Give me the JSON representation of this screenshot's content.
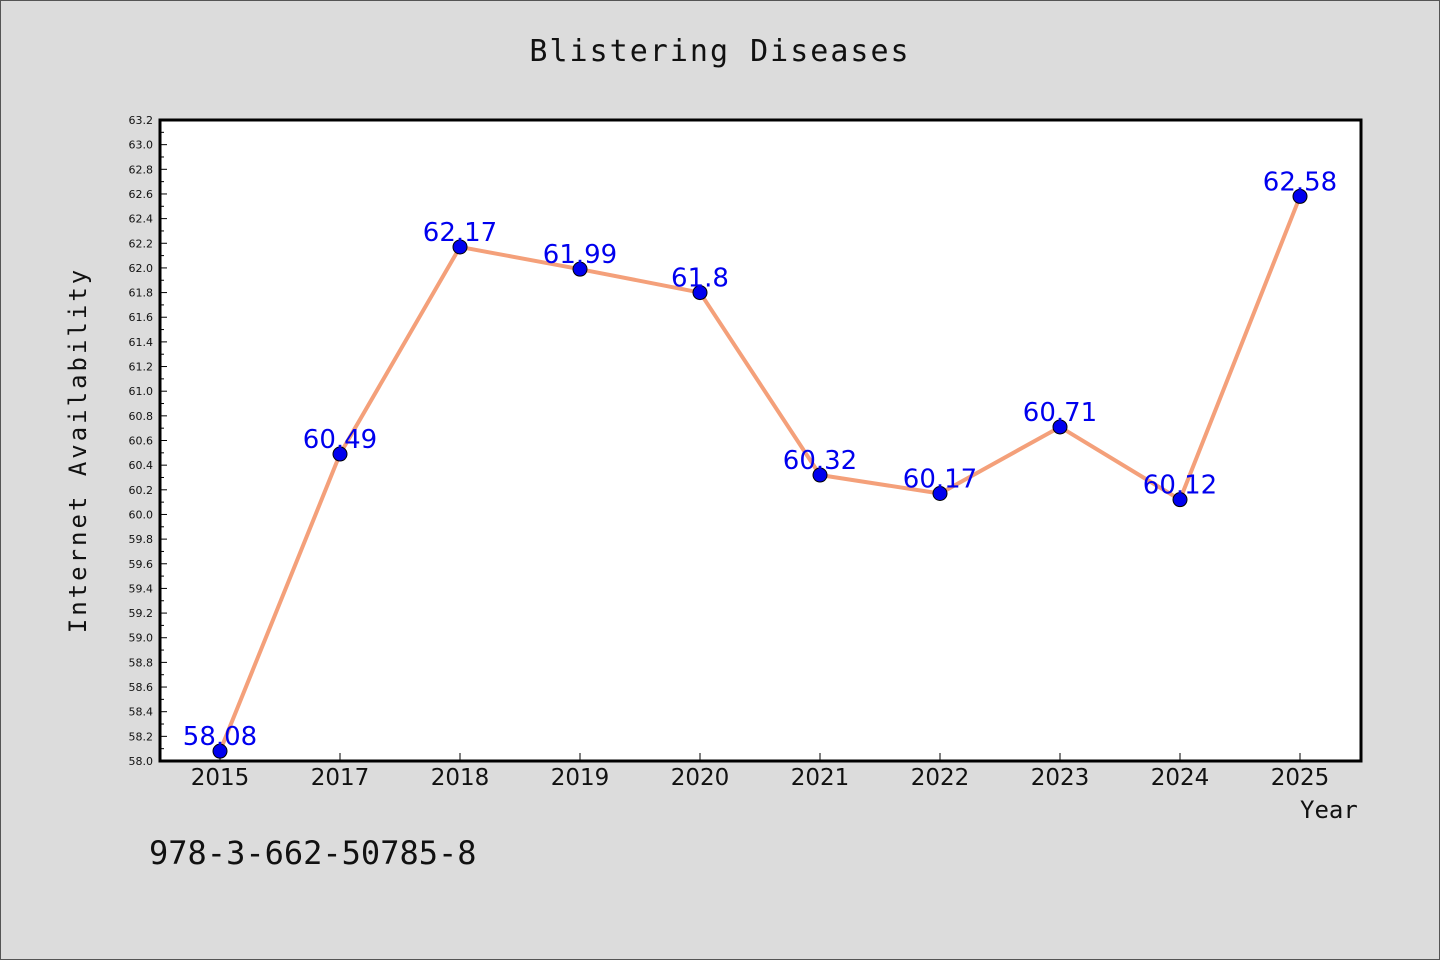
{
  "chart_data": {
    "type": "line",
    "title": "Blistering Diseases",
    "xlabel": "Year",
    "ylabel": "Internet Availability",
    "categories": [
      "2015",
      "2017",
      "2018",
      "2019",
      "2020",
      "2021",
      "2022",
      "2023",
      "2024",
      "2025"
    ],
    "series": [
      {
        "values": [
          58.08,
          60.49,
          62.17,
          61.99,
          61.8,
          60.32,
          60.17,
          60.71,
          60.12,
          62.58
        ],
        "data_labels": [
          "58.08",
          "60.49",
          "62.17",
          "61.99",
          "61.8",
          "60.32",
          "60.17",
          "60.71",
          "60.12",
          "62.58"
        ],
        "line_color": "#f4a07a",
        "marker_color": "#0000ee",
        "label_color": "#0000ee"
      }
    ],
    "ylim": [
      58.0,
      63.2
    ],
    "ytick_step": 0.2,
    "yticks": [
      "58.0",
      "58.2",
      "58.4",
      "58.6",
      "58.8",
      "59.0",
      "59.2",
      "59.4",
      "59.6",
      "59.8",
      "60.0",
      "60.2",
      "60.4",
      "60.6",
      "60.8",
      "61.0",
      "61.2",
      "61.4",
      "61.6",
      "61.8",
      "62.0",
      "62.2",
      "62.4",
      "62.6",
      "62.8",
      "63.0",
      "63.2"
    ],
    "grid": false,
    "legend": "none"
  },
  "footer": {
    "text": "978-3-662-50785-8"
  },
  "colors": {
    "background": "#dcdcdc",
    "plot_area": "#ffffff",
    "axis": "#000000"
  }
}
